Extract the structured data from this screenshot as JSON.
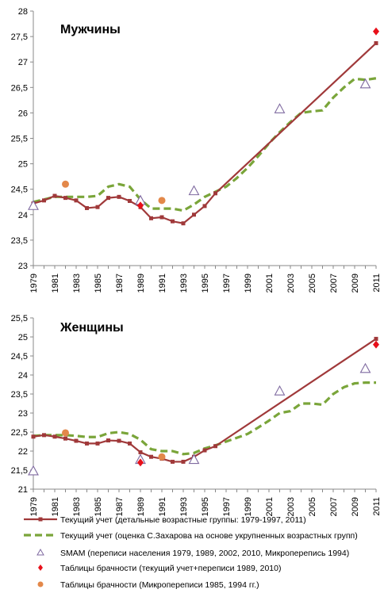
{
  "chart_data": [
    {
      "type": "line",
      "title": "Мужчины",
      "ylim": [
        23,
        28
      ],
      "y_ticks": [
        "23",
        "23,5",
        "24",
        "24,5",
        "25",
        "25,5",
        "26",
        "26,5",
        "27",
        "27,5",
        "28"
      ],
      "x_range": [
        1979,
        2011
      ],
      "x_ticks": [
        "1979",
        "1981",
        "1983",
        "1985",
        "1987",
        "1989",
        "1991",
        "1993",
        "1995",
        "1997",
        "1999",
        "2001",
        "2003",
        "2005",
        "2007",
        "2009",
        "2011"
      ],
      "series": [
        {
          "name": "Текущий учет (детальные возрастные группы: 1979-1997, 2011)",
          "color": "#a0393a",
          "x": [
            1979,
            1980,
            1981,
            1982,
            1983,
            1984,
            1985,
            1986,
            1987,
            1988,
            1989,
            1990,
            1991,
            1992,
            1993,
            1994,
            1995,
            1996,
            2011
          ],
          "y": [
            24.22,
            24.28,
            24.37,
            24.33,
            24.28,
            24.13,
            24.15,
            24.33,
            24.35,
            24.27,
            24.15,
            23.93,
            23.95,
            23.87,
            23.83,
            24.0,
            24.17,
            24.42,
            27.37
          ]
        },
        {
          "name": "Текущий учет (оценка С.Захарова на основе укрупненных возрастных групп)",
          "color": "#7aa53a",
          "x": [
            1979,
            1980,
            1981,
            1982,
            1983,
            1984,
            1985,
            1986,
            1987,
            1988,
            1989,
            1990,
            1991,
            1992,
            1993,
            1994,
            1995,
            1996,
            1997,
            1998,
            1999,
            2000,
            2001,
            2002,
            2003,
            2004,
            2005,
            2006,
            2007,
            2008,
            2009,
            2010,
            2011
          ],
          "y": [
            24.25,
            24.3,
            24.35,
            24.35,
            24.35,
            24.35,
            24.37,
            24.55,
            24.6,
            24.55,
            24.3,
            24.12,
            24.12,
            24.12,
            24.08,
            24.2,
            24.35,
            24.45,
            24.55,
            24.72,
            24.92,
            25.15,
            25.4,
            25.62,
            25.82,
            26.0,
            26.03,
            26.05,
            26.3,
            26.5,
            26.67,
            26.65,
            26.68
          ]
        },
        {
          "name": "SMAM (переписи населения 1979, 1989, 2002, 2010, Микроперепись 1994)",
          "color": "#7f6aa0",
          "x": [
            1979,
            1989,
            1994,
            2002,
            2010
          ],
          "y": [
            24.18,
            24.28,
            24.47,
            26.08,
            26.57
          ]
        },
        {
          "name": "Таблицы брачности (текущий учет+переписи 1989, 2010)",
          "color": "#e8101a",
          "x": [
            1989,
            2011
          ],
          "y": [
            24.18,
            27.6
          ]
        },
        {
          "name": "Таблицы брачности (Микропереписи 1985, 1994 гг.)",
          "color": "#e3884a",
          "x": [
            1982,
            1991
          ],
          "y": [
            24.6,
            24.28
          ]
        }
      ]
    },
    {
      "type": "line",
      "title": "Женщины",
      "ylim": [
        21,
        25.5
      ],
      "y_ticks": [
        "21",
        "21,5",
        "22",
        "22,5",
        "23",
        "23,5",
        "24",
        "24,5",
        "25",
        "25,5"
      ],
      "x_range": [
        1979,
        2011
      ],
      "x_ticks": [
        "1979",
        "1981",
        "1983",
        "1985",
        "1987",
        "1989",
        "1991",
        "1993",
        "1995",
        "1997",
        "1999",
        "2001",
        "2003",
        "2005",
        "2007",
        "2009",
        "2011"
      ],
      "series": [
        {
          "name": "Текущий учет (детальные возрастные группы: 1979-1997, 2011)",
          "color": "#a0393a",
          "x": [
            1979,
            1980,
            1981,
            1982,
            1983,
            1984,
            1985,
            1986,
            1987,
            1988,
            1989,
            1990,
            1991,
            1992,
            1993,
            1994,
            1995,
            1996,
            2011
          ],
          "y": [
            22.38,
            22.42,
            22.38,
            22.33,
            22.27,
            22.2,
            22.2,
            22.28,
            22.27,
            22.2,
            21.97,
            21.85,
            21.8,
            21.72,
            21.72,
            21.85,
            22.02,
            22.13,
            24.95
          ]
        },
        {
          "name": "Текущий учет (оценка С.Захарова на основе укрупненных возрастных групп)",
          "color": "#7aa53a",
          "x": [
            1979,
            1980,
            1981,
            1982,
            1983,
            1984,
            1985,
            1986,
            1987,
            1988,
            1989,
            1990,
            1991,
            1992,
            1993,
            1994,
            1995,
            1996,
            1997,
            1998,
            1999,
            2000,
            2001,
            2002,
            2003,
            2004,
            2005,
            2006,
            2007,
            2008,
            2009,
            2010,
            2011
          ],
          "y": [
            22.4,
            22.42,
            22.42,
            22.42,
            22.4,
            22.37,
            22.37,
            22.47,
            22.5,
            22.45,
            22.3,
            22.05,
            22.0,
            22.0,
            21.92,
            21.95,
            22.07,
            22.15,
            22.25,
            22.35,
            22.45,
            22.62,
            22.8,
            23.0,
            23.05,
            23.25,
            23.25,
            23.22,
            23.5,
            23.68,
            23.78,
            23.8,
            23.8
          ]
        },
        {
          "name": "SMAM (переписи населения 1979, 1989, 2002, 2010, Микроперепись 1994)",
          "color": "#7f6aa0",
          "x": [
            1979,
            1989,
            1994,
            2002,
            2010
          ],
          "y": [
            21.48,
            21.78,
            21.78,
            23.58,
            24.17
          ]
        },
        {
          "name": "Таблицы брачности (текущий учет+переписи 1989, 2010)",
          "color": "#e8101a",
          "x": [
            1989,
            2011
          ],
          "y": [
            21.7,
            24.8
          ]
        },
        {
          "name": "Таблицы брачности (Микропереписи 1985, 1994 гг.)",
          "color": "#e3884a",
          "x": [
            1982,
            1991
          ],
          "y": [
            22.48,
            21.85
          ]
        }
      ]
    }
  ],
  "legend": {
    "items": [
      "Текущий учет (детальные возрастные группы: 1979-1997, 2011)",
      "Текущий учет (оценка С.Захарова на основе укрупненных возрастных групп)",
      "SMAM (переписи населения 1979, 1989, 2002, 2010, Микроперепись 1994)",
      "Таблицы брачности (текущий учет+переписи 1989, 2010)",
      "Таблицы брачности (Микропереписи 1985, 1994 гг.)"
    ]
  }
}
